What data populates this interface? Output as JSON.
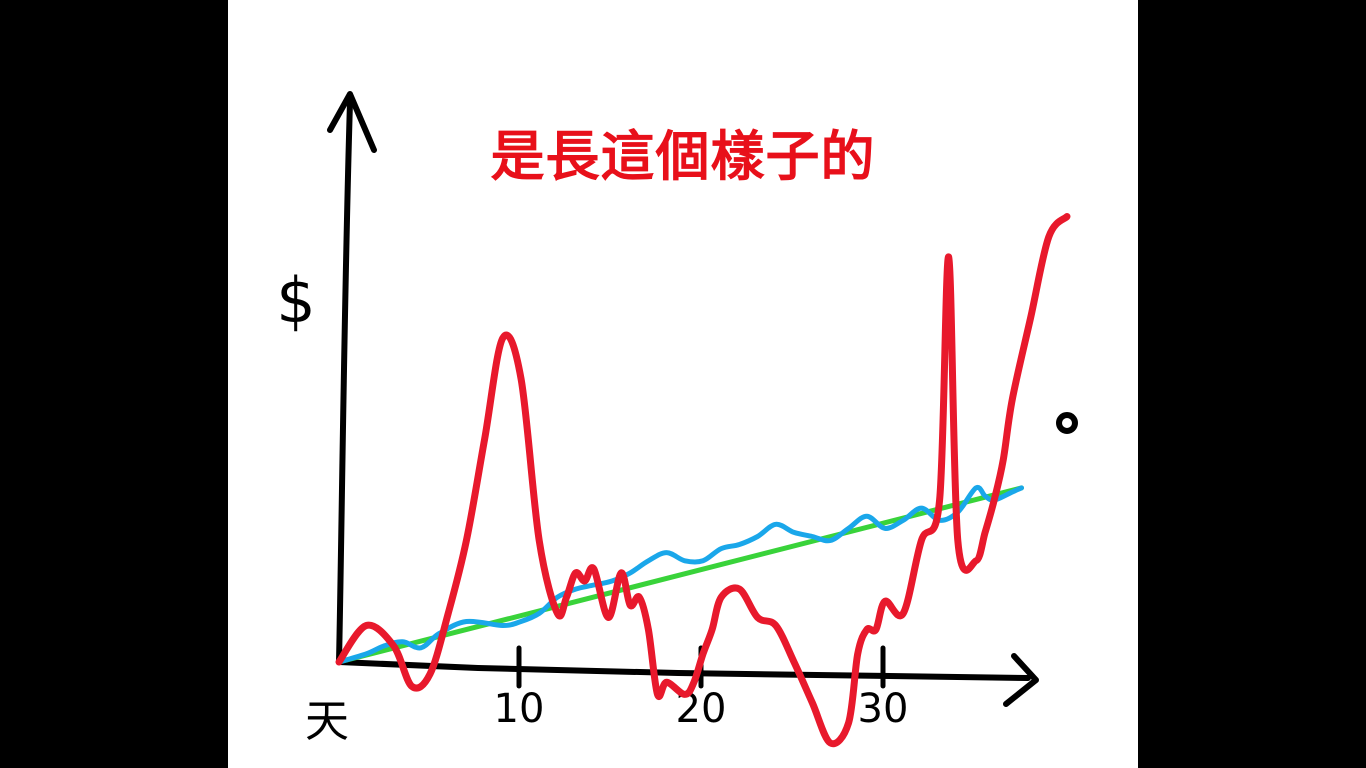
{
  "colors": {
    "background": "#000000",
    "slide": "#ffffff",
    "title": "#e8101a",
    "axis": "#000000",
    "green": "#39d33a",
    "blue": "#1aa7ea",
    "red": "#e8192c"
  },
  "chart_data": {
    "type": "line",
    "title": "是長這個樣子的",
    "xlabel": "天",
    "ylabel": "$",
    "xlim": [
      0,
      38
    ],
    "ylim": [
      -2,
      11
    ],
    "grid": false,
    "legend": "none",
    "xticks": [
      {
        "value": 10,
        "label": "10"
      },
      {
        "value": 20,
        "label": "20"
      },
      {
        "value": 30,
        "label": "30"
      }
    ],
    "series": [
      {
        "color": "green",
        "x": [
          0,
          37.5
        ],
        "y": [
          0,
          4.3
        ]
      },
      {
        "color": "blue",
        "x": [
          0,
          1.5,
          2.5,
          3.5,
          4.5,
          5.5,
          7,
          9,
          10,
          11,
          12,
          13,
          14,
          15,
          16,
          17,
          18,
          19,
          20,
          21,
          22,
          23,
          24,
          25,
          26,
          27,
          28,
          29,
          30,
          31,
          32,
          33,
          34,
          35,
          35.5,
          36,
          37,
          37.5
        ],
        "y": [
          0,
          0.2,
          0.4,
          0.5,
          0.35,
          0.7,
          1.0,
          0.9,
          1.0,
          1.2,
          1.6,
          1.8,
          1.9,
          2.0,
          2.2,
          2.5,
          2.7,
          2.5,
          2.5,
          2.8,
          2.9,
          3.1,
          3.4,
          3.2,
          3.1,
          3.0,
          3.3,
          3.6,
          3.3,
          3.5,
          3.8,
          3.5,
          3.7,
          4.3,
          4.1,
          4.0,
          4.2,
          4.3
        ]
      },
      {
        "color": "red",
        "x": [
          0,
          1.5,
          3,
          4,
          5,
          6,
          7,
          8,
          9,
          10,
          11,
          12,
          12.5,
          13,
          13.5,
          14,
          14.8,
          15.5,
          16,
          16.5,
          17,
          17.5,
          18,
          19,
          19.5,
          20,
          20.5,
          21,
          22,
          23,
          24,
          25,
          26,
          27,
          28,
          28.5,
          29,
          29.5,
          30,
          31,
          32,
          33,
          33.5,
          34,
          35,
          35.5,
          36,
          36.5,
          37,
          38,
          39,
          40
        ],
        "y": [
          0,
          0.9,
          0.4,
          -0.6,
          -0.3,
          1.2,
          3.0,
          5.5,
          8.0,
          7.0,
          3.0,
          1.2,
          1.6,
          2.2,
          2.0,
          2.3,
          1.1,
          2.2,
          1.4,
          1.6,
          0.8,
          -0.8,
          -0.5,
          -0.8,
          -0.5,
          0.2,
          0.8,
          1.6,
          1.8,
          1.1,
          0.9,
          0.0,
          -1.0,
          -2.0,
          -1.5,
          0.2,
          0.8,
          0.8,
          1.5,
          1.2,
          3.0,
          4.0,
          10.0,
          3.0,
          2.5,
          3.2,
          4.0,
          5.0,
          6.5,
          8.5,
          10.5,
          11.0
        ]
      }
    ]
  }
}
